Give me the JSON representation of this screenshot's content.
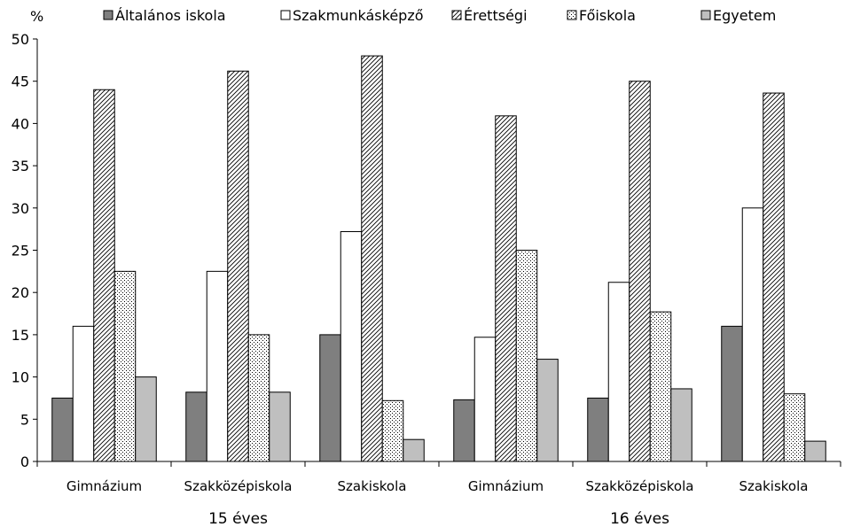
{
  "chart_data": {
    "type": "bar",
    "ylabel": "%",
    "ylim": [
      0,
      50
    ],
    "yticks": [
      0,
      5,
      10,
      15,
      20,
      25,
      30,
      35,
      40,
      45,
      50
    ],
    "legend_position": "top",
    "categories": [
      "Gimnázium",
      "Szakközépiskola",
      "Szakiskola",
      "Gimnázium",
      "Szakközépiskola",
      "Szakiskola"
    ],
    "groups": [
      {
        "label": "15 éves",
        "categories": [
          "Gimnázium",
          "Szakközépiskola",
          "Szakiskola"
        ]
      },
      {
        "label": "16 éves",
        "categories": [
          "Gimnázium",
          "Szakközépiskola",
          "Szakiskola"
        ]
      }
    ],
    "series": [
      {
        "name": "Általános iskola",
        "pattern": "solid-dark",
        "color": "#7f7f7f",
        "values": [
          7.5,
          8.2,
          15.0,
          7.3,
          7.5,
          16.0
        ]
      },
      {
        "name": "Szakmunkásképző",
        "pattern": "white",
        "color": "#ffffff",
        "values": [
          16.0,
          22.5,
          27.2,
          14.7,
          21.2,
          30.0
        ]
      },
      {
        "name": "Érettségi",
        "pattern": "diagonal-hatch",
        "color": "#000000",
        "values": [
          44.0,
          46.2,
          48.0,
          40.9,
          45.0,
          43.6
        ]
      },
      {
        "name": "Főiskola",
        "pattern": "dots",
        "color": "#000000",
        "values": [
          22.5,
          15.0,
          7.2,
          25.0,
          17.7,
          8.0
        ]
      },
      {
        "name": "Egyetem",
        "pattern": "solid-light",
        "color": "#bfbfbf",
        "values": [
          10.0,
          8.2,
          2.6,
          12.1,
          8.6,
          2.4
        ]
      }
    ]
  }
}
